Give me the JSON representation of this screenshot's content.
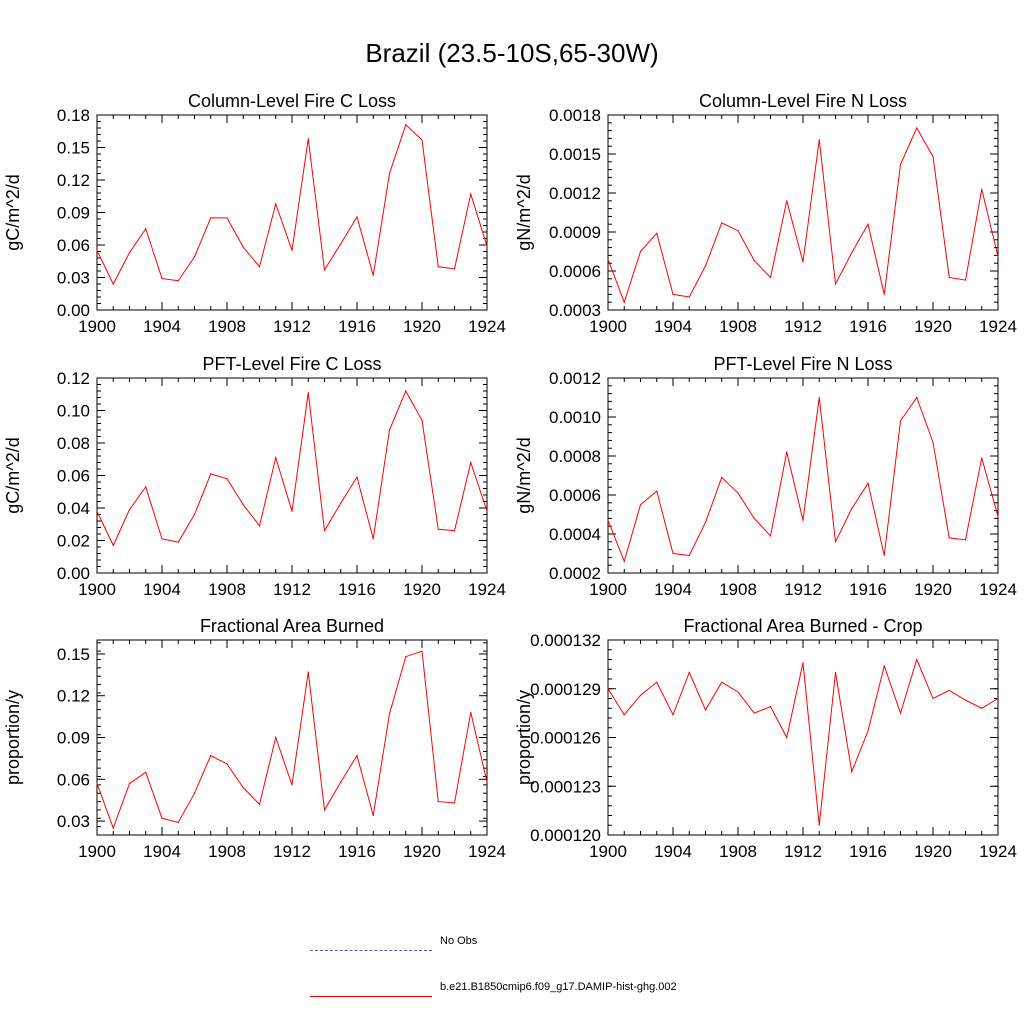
{
  "title": "Brazil (23.5-10S,65-30W)",
  "colors": {
    "series": "#ff0000",
    "obs": "#5a5ab4",
    "axis": "#000000"
  },
  "legend": [
    {
      "label": "No Obs",
      "style": "dashed",
      "color": "#5a5ab4"
    },
    {
      "label": "b.e21.B1850cmip6.f09_g17.DAMIP-hist-ghg.002",
      "style": "solid",
      "color": "#ff0000"
    }
  ],
  "chart_data": [
    {
      "type": "line",
      "title": "Column-Level Fire C Loss",
      "xlabel": "",
      "ylabel": "gC/m^2/d",
      "xlim": [
        1900,
        1924
      ],
      "ylim": [
        0.0,
        0.18
      ],
      "xticks": [
        1900,
        1904,
        1908,
        1912,
        1916,
        1920,
        1924
      ],
      "yticks": [
        0.0,
        0.03,
        0.06,
        0.09,
        0.12,
        0.15,
        0.18
      ],
      "ytick_labels": [
        "0.00",
        "0.03",
        "0.06",
        "0.09",
        "0.12",
        "0.15",
        "0.18"
      ],
      "x": [
        1900,
        1901,
        1902,
        1903,
        1904,
        1905,
        1906,
        1907,
        1908,
        1909,
        1910,
        1911,
        1912,
        1913,
        1914,
        1915,
        1916,
        1917,
        1918,
        1919,
        1920,
        1921,
        1922,
        1923,
        1924
      ],
      "series": [
        {
          "values": [
            0.055,
            0.024,
            0.053,
            0.075,
            0.029,
            0.027,
            0.049,
            0.085,
            0.085,
            0.058,
            0.04,
            0.098,
            0.055,
            0.158,
            0.037,
            0.061,
            0.086,
            0.032,
            0.126,
            0.171,
            0.157,
            0.04,
            0.038,
            0.107,
            0.059
          ]
        }
      ]
    },
    {
      "type": "line",
      "title": "Column-Level Fire N Loss",
      "xlabel": "",
      "ylabel": "gN/m^2/d",
      "xlim": [
        1900,
        1924
      ],
      "ylim": [
        0.0003,
        0.0018
      ],
      "xticks": [
        1900,
        1904,
        1908,
        1912,
        1916,
        1920,
        1924
      ],
      "yticks": [
        0.0003,
        0.0006,
        0.0009,
        0.0012,
        0.0015,
        0.0018
      ],
      "ytick_labels": [
        "0.0003",
        "0.0006",
        "0.0009",
        "0.0012",
        "0.0015",
        "0.0018"
      ],
      "x": [
        1900,
        1901,
        1902,
        1903,
        1904,
        1905,
        1906,
        1907,
        1908,
        1909,
        1910,
        1911,
        1912,
        1913,
        1914,
        1915,
        1916,
        1917,
        1918,
        1919,
        1920,
        1921,
        1922,
        1923,
        1924
      ],
      "series": [
        {
          "values": [
            0.00069,
            0.00036,
            0.00075,
            0.00089,
            0.00042,
            0.0004,
            0.00064,
            0.00097,
            0.00091,
            0.00068,
            0.00055,
            0.00114,
            0.00067,
            0.00161,
            0.0005,
            0.00074,
            0.00096,
            0.00042,
            0.00142,
            0.0017,
            0.00148,
            0.00055,
            0.00053,
            0.00123,
            0.00071
          ]
        }
      ]
    },
    {
      "type": "line",
      "title": "PFT-Level Fire C Loss",
      "xlabel": "",
      "ylabel": "gC/m^2/d",
      "xlim": [
        1900,
        1924
      ],
      "ylim": [
        0.0,
        0.12
      ],
      "xticks": [
        1900,
        1904,
        1908,
        1912,
        1916,
        1920,
        1924
      ],
      "yticks": [
        0.0,
        0.02,
        0.04,
        0.06,
        0.08,
        0.1,
        0.12
      ],
      "ytick_labels": [
        "0.00",
        "0.02",
        "0.04",
        "0.06",
        "0.08",
        "0.10",
        "0.12"
      ],
      "x": [
        1900,
        1901,
        1902,
        1903,
        1904,
        1905,
        1906,
        1907,
        1908,
        1909,
        1910,
        1911,
        1912,
        1913,
        1914,
        1915,
        1916,
        1917,
        1918,
        1919,
        1920,
        1921,
        1922,
        1923,
        1924
      ],
      "series": [
        {
          "values": [
            0.038,
            0.017,
            0.039,
            0.053,
            0.021,
            0.019,
            0.036,
            0.061,
            0.058,
            0.042,
            0.029,
            0.071,
            0.038,
            0.111,
            0.026,
            0.043,
            0.059,
            0.021,
            0.088,
            0.112,
            0.094,
            0.027,
            0.026,
            0.068,
            0.038
          ]
        }
      ]
    },
    {
      "type": "line",
      "title": "PFT-Level Fire N Loss",
      "xlabel": "",
      "ylabel": "gN/m^2/d",
      "xlim": [
        1900,
        1924
      ],
      "ylim": [
        0.0002,
        0.0012
      ],
      "xticks": [
        1900,
        1904,
        1908,
        1912,
        1916,
        1920,
        1924
      ],
      "yticks": [
        0.0002,
        0.0004,
        0.0006,
        0.0008,
        0.001,
        0.0012
      ],
      "ytick_labels": [
        "0.0002",
        "0.0004",
        "0.0006",
        "0.0008",
        "0.0010",
        "0.0012"
      ],
      "x": [
        1900,
        1901,
        1902,
        1903,
        1904,
        1905,
        1906,
        1907,
        1908,
        1909,
        1910,
        1911,
        1912,
        1913,
        1914,
        1915,
        1916,
        1917,
        1918,
        1919,
        1920,
        1921,
        1922,
        1923,
        1924
      ],
      "series": [
        {
          "values": [
            0.00047,
            0.00026,
            0.00055,
            0.00062,
            0.0003,
            0.00029,
            0.00046,
            0.00069,
            0.00061,
            0.00048,
            0.00039,
            0.00082,
            0.00047,
            0.0011,
            0.00036,
            0.00053,
            0.00066,
            0.00029,
            0.00098,
            0.0011,
            0.00087,
            0.00038,
            0.00037,
            0.00079,
            0.00049
          ]
        }
      ]
    },
    {
      "type": "line",
      "title": "Fractional Area Burned",
      "xlabel": "",
      "ylabel": "proportion/y",
      "xlim": [
        1900,
        1924
      ],
      "ylim": [
        0.02,
        0.16
      ],
      "xticks": [
        1900,
        1904,
        1908,
        1912,
        1916,
        1920,
        1924
      ],
      "yticks": [
        0.03,
        0.06,
        0.09,
        0.12,
        0.15
      ],
      "ytick_labels": [
        "0.03",
        "0.06",
        "0.09",
        "0.12",
        "0.15"
      ],
      "x": [
        1900,
        1901,
        1902,
        1903,
        1904,
        1905,
        1906,
        1907,
        1908,
        1909,
        1910,
        1911,
        1912,
        1913,
        1914,
        1915,
        1916,
        1917,
        1918,
        1919,
        1920,
        1921,
        1922,
        1923,
        1924
      ],
      "series": [
        {
          "values": [
            0.057,
            0.025,
            0.057,
            0.065,
            0.032,
            0.029,
            0.05,
            0.077,
            0.071,
            0.054,
            0.042,
            0.09,
            0.056,
            0.137,
            0.038,
            0.058,
            0.077,
            0.034,
            0.107,
            0.148,
            0.152,
            0.044,
            0.043,
            0.108,
            0.058
          ]
        }
      ]
    },
    {
      "type": "line",
      "title": "Fractional Area Burned - Crop",
      "xlabel": "",
      "ylabel": "proportion/y",
      "xlim": [
        1900,
        1924
      ],
      "ylim": [
        0.00012,
        0.000132
      ],
      "xticks": [
        1900,
        1904,
        1908,
        1912,
        1916,
        1920,
        1924
      ],
      "yticks": [
        0.00012,
        0.000123,
        0.000126,
        0.000129,
        0.000132
      ],
      "ytick_labels": [
        "0.000120",
        "0.000123",
        "0.000126",
        "0.000129",
        "0.000132"
      ],
      "x": [
        1900,
        1901,
        1902,
        1903,
        1904,
        1905,
        1906,
        1907,
        1908,
        1909,
        1910,
        1911,
        1912,
        1913,
        1914,
        1915,
        1916,
        1917,
        1918,
        1919,
        1920,
        1921,
        1922,
        1923,
        1924
      ],
      "series": [
        {
          "values": [
            0.000129,
            0.0001274,
            0.0001286,
            0.0001294,
            0.0001274,
            0.00013,
            0.0001277,
            0.0001294,
            0.0001288,
            0.0001275,
            0.0001279,
            0.000126,
            0.0001306,
            0.0001206,
            0.00013,
            0.0001239,
            0.0001264,
            0.0001304,
            0.0001275,
            0.0001308,
            0.0001284,
            0.0001289,
            0.0001283,
            0.0001278,
            0.0001284
          ]
        }
      ]
    }
  ]
}
